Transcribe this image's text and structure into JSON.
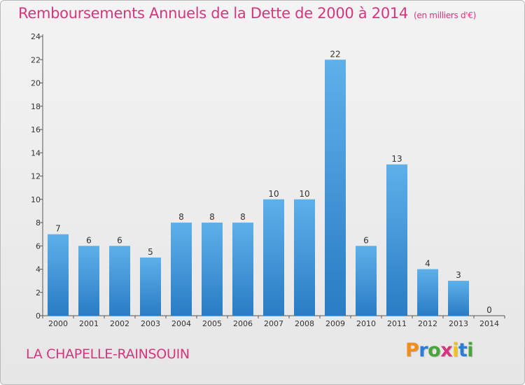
{
  "title": "Remboursements Annuels de la Dette de 2000 à 2014",
  "unit": "(en milliers d'€)",
  "commune": "LA CHAPELLE-RAINSOUIN",
  "logo": {
    "letters": [
      "P",
      "r",
      "o",
      "x",
      "i",
      "t",
      "i"
    ],
    "colors": [
      "#f28c1a",
      "#2a7fd4",
      "#49a43c",
      "#d6357e",
      "#f2c21a",
      "#2a7fd4",
      "#49a43c"
    ]
  },
  "colors": {
    "accent": "#d6357e",
    "bar_top": "#5eb0ea",
    "bar_bottom": "#2a7cc4"
  },
  "chart_data": {
    "type": "bar",
    "title": "Remboursements Annuels de la Dette de 2000 à 2014",
    "categories": [
      "2000",
      "2001",
      "2002",
      "2003",
      "2004",
      "2005",
      "2006",
      "2007",
      "2008",
      "2009",
      "2010",
      "2011",
      "2012",
      "2013",
      "2014"
    ],
    "values": [
      7,
      6,
      6,
      5,
      8,
      8,
      8,
      10,
      10,
      22,
      6,
      13,
      4,
      3,
      0
    ],
    "ylim": [
      0,
      24
    ],
    "yticks": [
      0,
      2,
      4,
      6,
      8,
      10,
      12,
      14,
      16,
      18,
      20,
      22,
      24
    ],
    "grid": false,
    "data_labels": true
  }
}
